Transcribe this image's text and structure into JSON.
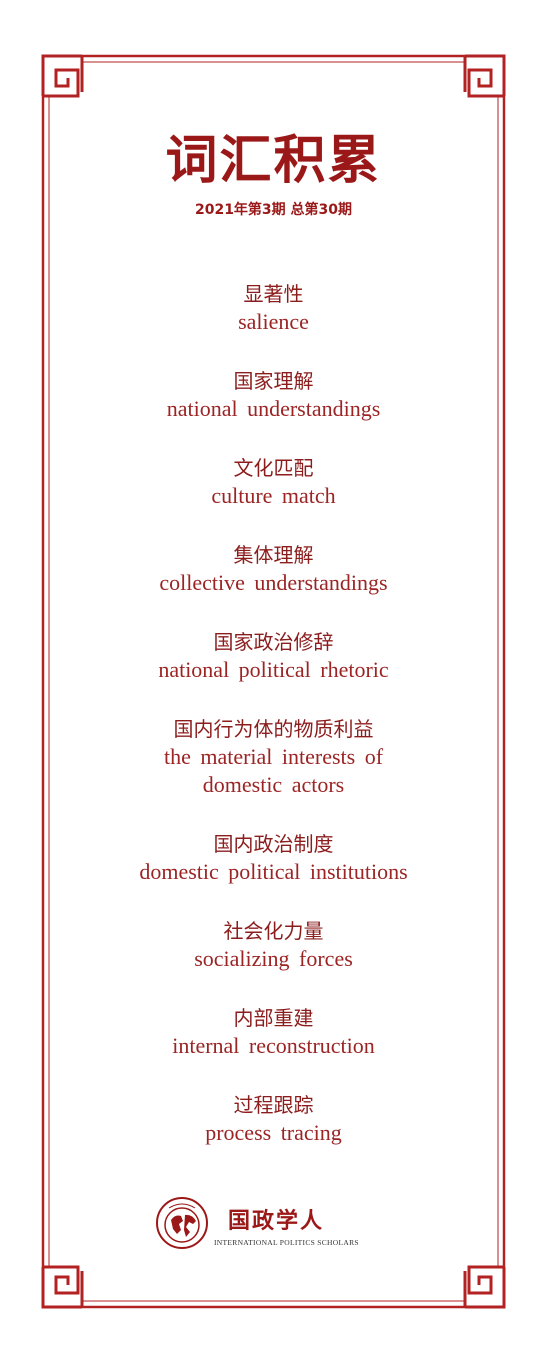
{
  "title": "词汇积累",
  "issue": "2021年第3期 总第30期",
  "entries": [
    {
      "zh": "显著性",
      "en": "salience"
    },
    {
      "zh": "国家理解",
      "en": "national understandings"
    },
    {
      "zh": "文化匹配",
      "en": "culture match"
    },
    {
      "zh": "集体理解",
      "en": "collective understandings"
    },
    {
      "zh": "国家政治修辞",
      "en": "national political rhetoric"
    },
    {
      "zh": "国内行为体的物质利益",
      "en": "the material interests of",
      "en2": "domestic actors"
    },
    {
      "zh": "国内政治制度",
      "en": "domestic political institutions"
    },
    {
      "zh": "社会化力量",
      "en": "socializing forces"
    },
    {
      "zh": "内部重建",
      "en": "internal reconstruction"
    },
    {
      "zh": "过程跟踪",
      "en": "process tracing"
    }
  ],
  "logo": {
    "name_zh": "国政学人",
    "name_en": "INTERNATIONAL POLITICS SCHOLARS"
  },
  "colors": {
    "accent": "#9b1818",
    "frame": "#b22222"
  }
}
